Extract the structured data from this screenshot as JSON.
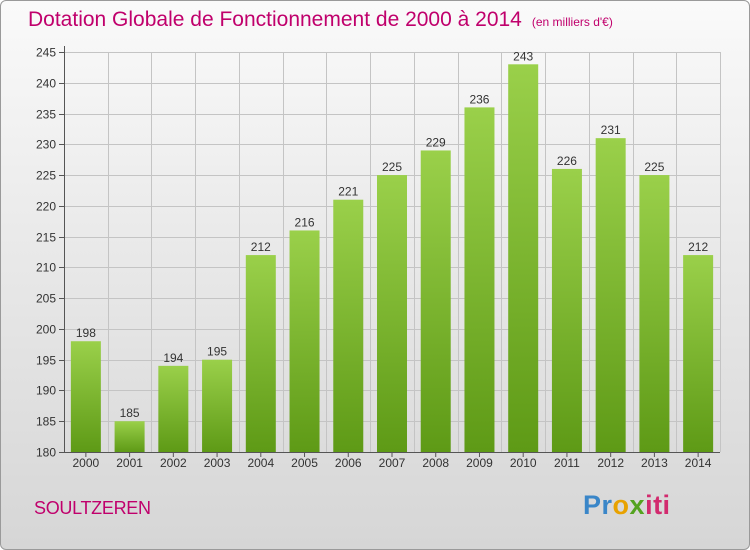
{
  "header": {
    "title": "Dotation Globale de Fonctionnement de 2000 à 2014",
    "unit": "(en milliers d'€)"
  },
  "footer": {
    "place": "SOULTZEREN",
    "logo": "Proxiti",
    "logo_colors": [
      "#3a86c8",
      "#e8a200",
      "#54a31f",
      "#d22a6e"
    ]
  },
  "chart_data": {
    "type": "bar",
    "title": "Dotation Globale de Fonctionnement de 2000 à 2014",
    "subtitle": "(en milliers d'€)",
    "xlabel": "",
    "ylabel": "",
    "categories": [
      "2000",
      "2001",
      "2002",
      "2003",
      "2004",
      "2005",
      "2006",
      "2007",
      "2008",
      "2009",
      "2010",
      "2011",
      "2012",
      "2013",
      "2014"
    ],
    "values": [
      198,
      185,
      194,
      195,
      212,
      216,
      221,
      225,
      229,
      236,
      243,
      226,
      231,
      225,
      212
    ],
    "ylim": [
      180,
      245
    ],
    "yticks": [
      180,
      185,
      190,
      195,
      200,
      205,
      210,
      215,
      220,
      225,
      230,
      235,
      240,
      245
    ],
    "grid": true,
    "bar_color_top": "#9ad04a",
    "bar_color_bottom": "#5e9a16",
    "data_labels": true
  }
}
